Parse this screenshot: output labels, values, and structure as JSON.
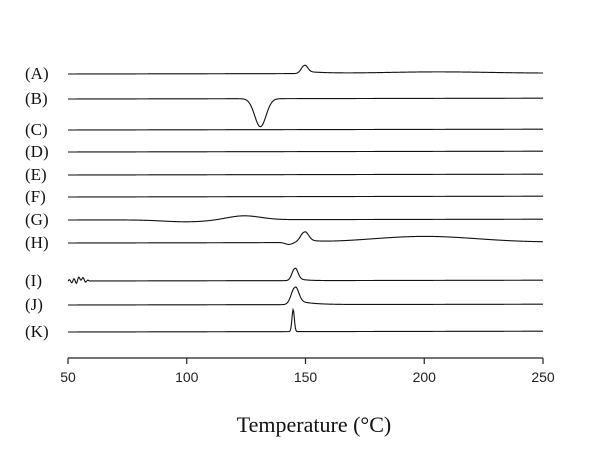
{
  "chart_data": {
    "type": "line",
    "xlabel": "Temperature (°C)",
    "ylabel": "",
    "xlim": [
      50,
      250
    ],
    "xticks": [
      50,
      100,
      150,
      200,
      250
    ],
    "grid": false,
    "legend": "none",
    "series": [
      {
        "name": "(A)",
        "features": [
          {
            "kind": "peak",
            "x": 149.5,
            "amp": 8,
            "w": 1.3,
            "tail": 9
          },
          {
            "kind": "hump",
            "x": 205,
            "amp": 1.5,
            "w": 22
          }
        ]
      },
      {
        "name": "(B)",
        "features": [
          {
            "kind": "peak",
            "x": 131,
            "amp": -28,
            "w": 2.4,
            "tail": 0
          }
        ]
      },
      {
        "name": "(C)",
        "features": []
      },
      {
        "name": "(D)",
        "features": []
      },
      {
        "name": "(E)",
        "features": []
      },
      {
        "name": "(F)",
        "features": []
      },
      {
        "name": "(G)",
        "features": [
          {
            "kind": "hump",
            "x": 124,
            "amp": 4,
            "w": 7
          },
          {
            "kind": "hump",
            "x": 100,
            "amp": -2,
            "w": 10
          }
        ]
      },
      {
        "name": "(H)",
        "features": [
          {
            "kind": "peak",
            "x": 149.5,
            "amp": 10,
            "w": 1.6,
            "tail": 5
          },
          {
            "kind": "hump",
            "x": 200,
            "amp": 6,
            "w": 22
          },
          {
            "kind": "dip",
            "x": 143,
            "amp": -2,
            "w": 1.5
          }
        ]
      },
      {
        "name": "(I)",
        "features": [
          {
            "kind": "peak",
            "x": 145.5,
            "amp": 12,
            "w": 1.2,
            "tail": 3
          },
          {
            "kind": "noise",
            "x": 54,
            "amp": 5,
            "w": 3
          }
        ]
      },
      {
        "name": "(J)",
        "features": [
          {
            "kind": "peak",
            "x": 145.5,
            "amp": 17,
            "w": 1.5,
            "tail": 6
          }
        ]
      },
      {
        "name": "(K)",
        "features": [
          {
            "kind": "peak",
            "x": 144.8,
            "amp": 22,
            "w": 0.5,
            "tail": 0
          }
        ]
      }
    ]
  }
}
